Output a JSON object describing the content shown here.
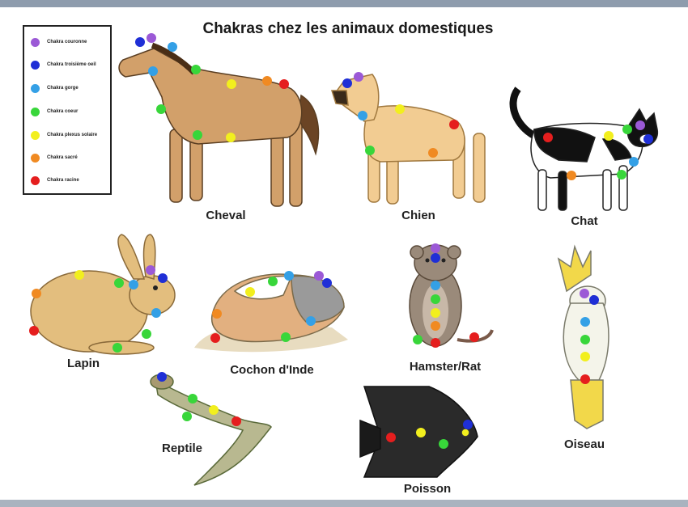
{
  "title": "Chakras chez les animaux domestiques",
  "legend": [
    {
      "label": "Chakra couronne",
      "color": "#9b59d6"
    },
    {
      "label": "Chakra troisième oeil",
      "color": "#1f2fd6"
    },
    {
      "label": "Chakra gorge",
      "color": "#34a0e6"
    },
    {
      "label": "Chakra coeur",
      "color": "#38d63a"
    },
    {
      "label": "Chakra plexus solaire",
      "color": "#f2ef1e"
    },
    {
      "label": "Chakra sacré",
      "color": "#f08a22"
    },
    {
      "label": "Chakra racine",
      "color": "#e51e1e"
    }
  ],
  "animals": {
    "cheval": "Cheval",
    "chien": "Chien",
    "chat": "Chat",
    "lapin": "Lapin",
    "cochon": "Cochon d'Inde",
    "hamster": "Hamster/Rat",
    "reptile": "Reptile",
    "poisson": "Poisson",
    "oiseau": "Oiseau"
  }
}
